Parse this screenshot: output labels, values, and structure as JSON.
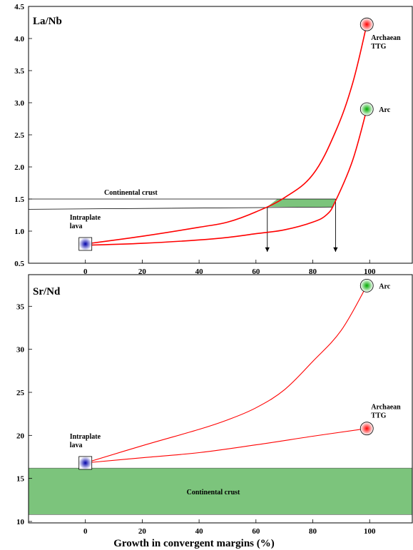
{
  "chart_data": [
    {
      "type": "line",
      "title": "La/Nb",
      "xlim": [
        -20,
        115
      ],
      "ylim": [
        0.5,
        4.5
      ],
      "x_ticks": [
        0,
        20,
        40,
        60,
        80,
        100
      ],
      "y_ticks": [
        0.5,
        1.0,
        1.5,
        2.0,
        2.5,
        3.0,
        3.5,
        4.0,
        4.5
      ],
      "y_tick_labels": [
        "0.5",
        "1.0",
        "1.5",
        "2.0",
        "2.5",
        "3.0",
        "3.5",
        "4.0",
        "4.5"
      ],
      "grid": false,
      "series": [
        {
          "color": "#ff0000",
          "x": [
            0,
            20,
            40,
            50,
            60,
            70,
            80,
            88,
            94,
            99
          ],
          "y": [
            0.8,
            0.92,
            1.06,
            1.14,
            1.3,
            1.52,
            1.88,
            2.55,
            3.3,
            4.22
          ]
        },
        {
          "color": "#ff0000",
          "x": [
            0,
            20,
            45,
            60,
            70,
            80,
            85,
            88,
            94,
            99
          ],
          "y": [
            0.78,
            0.81,
            0.88,
            0.96,
            1.02,
            1.14,
            1.26,
            1.47,
            2.1,
            2.9
          ]
        }
      ],
      "endpoints": [
        {
          "label": "Intraplate\nlava",
          "x": 0,
          "y": 0.8,
          "marker": "square",
          "color": "#0000aa"
        },
        {
          "label": "Archaean\nTTG",
          "x": 99,
          "y": 4.22,
          "marker": "circle",
          "color": "#ff0000"
        },
        {
          "label": "Arc",
          "x": 99,
          "y": 2.9,
          "marker": "circle",
          "color": "#00aa00"
        }
      ],
      "continental_crust": {
        "label": "Continental crust",
        "line_value": 1.5,
        "lower_line_from": [
          -20,
          1.34
        ],
        "lower_line_to": [
          64,
          1.38
        ],
        "band_x": [
          64,
          88
        ],
        "band_fill": "#7cc47c",
        "arrows_at_x": [
          64,
          88
        ]
      }
    },
    {
      "type": "line",
      "title": "Sr/Nd",
      "xlim": [
        -20,
        115
      ],
      "ylim": [
        10,
        40
      ],
      "x_ticks": [
        0,
        20,
        40,
        60,
        80,
        100
      ],
      "y_ticks": [
        10,
        15,
        20,
        25,
        30,
        35
      ],
      "y_tick_labels": [
        "10",
        "15",
        "20",
        "25",
        "30",
        "35"
      ],
      "grid": false,
      "xlabel": "Growth in convergent margins (%)",
      "series": [
        {
          "color": "#ff0000",
          "x": [
            0,
            20,
            40,
            50,
            60,
            70,
            80,
            90,
            99
          ],
          "y": [
            16.8,
            18.8,
            20.7,
            21.8,
            23.2,
            25.3,
            28.6,
            32.2,
            37.4
          ]
        },
        {
          "color": "#ff0000",
          "x": [
            0,
            20,
            40,
            60,
            80,
            99
          ],
          "y": [
            16.8,
            17.4,
            18.0,
            18.9,
            19.9,
            20.8
          ]
        }
      ],
      "endpoints": [
        {
          "label": "Intraplate\nlava",
          "x": 0,
          "y": 16.8,
          "marker": "square",
          "color": "#0000aa"
        },
        {
          "label": "Arc",
          "x": 99,
          "y": 37.4,
          "marker": "circle",
          "color": "#00aa00"
        },
        {
          "label": "Archaean\nTTG",
          "x": 99,
          "y": 20.8,
          "marker": "circle",
          "color": "#ff0000"
        }
      ],
      "continental_crust": {
        "label": "Continental crust",
        "y_range": [
          10.8,
          16.2
        ],
        "band_fill": "#7cc47c"
      }
    }
  ]
}
